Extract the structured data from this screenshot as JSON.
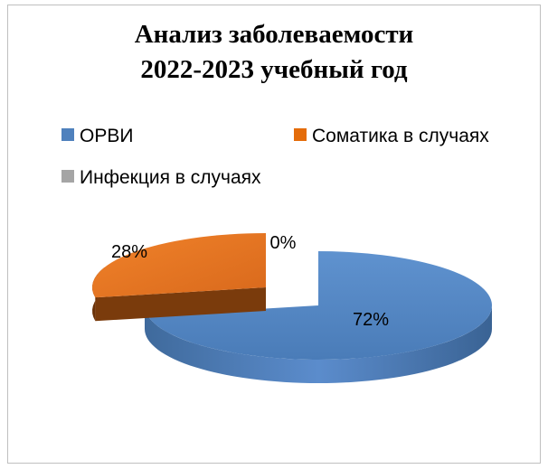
{
  "chart_data": {
    "type": "pie",
    "title_line1": "Анализ заболеваемости",
    "title_line2": "2022-2023 учебный год",
    "legend_placement": "top",
    "series": [
      {
        "name": "ОРВИ",
        "value": 72,
        "label": "72%",
        "color": "#4f81bd"
      },
      {
        "name": "Соматика в случаях",
        "value": 28,
        "label": "28%",
        "color": "#e46c0a"
      },
      {
        "name": "Инфекция в случаях",
        "value": 0,
        "label": "0%",
        "color": "#a5a5a5"
      }
    ]
  }
}
